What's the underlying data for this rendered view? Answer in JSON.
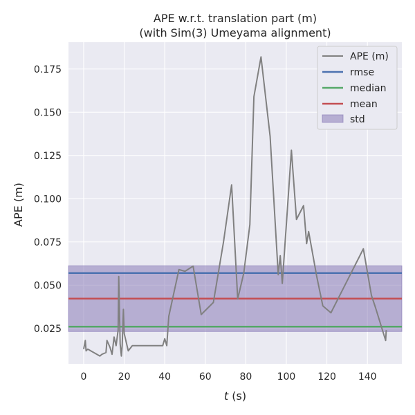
{
  "chart_data": {
    "type": "line",
    "title": "APE w.r.t. translation part (m)",
    "subtitle": "(with Sim(3) Umeyama alignment)",
    "xlabel_italic": "t",
    "xlabel_unit": " (s)",
    "ylabel": "APE (m)",
    "xlim": [
      -7.5,
      157
    ],
    "ylim": [
      0.0045,
      0.1905
    ],
    "xticks": [
      0,
      20,
      40,
      60,
      80,
      100,
      120,
      140
    ],
    "yticks": [
      0.025,
      0.05,
      0.075,
      0.1,
      0.125,
      0.15,
      0.175
    ],
    "ytick_labels": [
      "0.025",
      "0.050",
      "0.075",
      "0.100",
      "0.125",
      "0.150",
      "0.175"
    ],
    "grid": true,
    "legend_position": "top-right",
    "colors": {
      "plot_bg": "#eaeaf2",
      "grid": "#ffffff",
      "ape": "#808080",
      "rmse": "#4c72b0",
      "median": "#55a868",
      "mean": "#c44e52",
      "std": "#8172b2"
    },
    "series": [
      {
        "name": "APE (m)",
        "x": [
          0,
          0.8,
          1.2,
          2,
          5,
          8,
          9,
          11,
          11.5,
          13,
          14,
          15,
          16,
          17,
          17.3,
          18,
          18.6,
          19,
          19.6,
          20,
          22,
          24,
          39,
          40,
          41,
          42,
          47,
          50,
          54,
          58,
          64,
          69,
          73,
          76,
          79,
          82,
          84,
          87.5,
          92,
          96,
          97,
          98,
          100,
          102.5,
          105,
          108.5,
          110,
          111,
          115,
          118,
          122,
          138,
          142,
          144,
          149,
          149.3
        ],
        "y": [
          0.013,
          0.018,
          0.012,
          0.013,
          0.011,
          0.009,
          0.01,
          0.011,
          0.018,
          0.014,
          0.01,
          0.02,
          0.015,
          0.024,
          0.055,
          0.016,
          0.009,
          0.015,
          0.036,
          0.022,
          0.012,
          0.015,
          0.015,
          0.019,
          0.015,
          0.032,
          0.059,
          0.058,
          0.061,
          0.033,
          0.04,
          0.075,
          0.108,
          0.042,
          0.057,
          0.085,
          0.159,
          0.182,
          0.136,
          0.056,
          0.067,
          0.051,
          0.085,
          0.128,
          0.088,
          0.096,
          0.074,
          0.081,
          0.055,
          0.038,
          0.034,
          0.071,
          0.044,
          0.037,
          0.018,
          0.024
        ]
      },
      {
        "name": "rmse",
        "value": 0.057
      },
      {
        "name": "median",
        "value": 0.026
      },
      {
        "name": "mean",
        "value": 0.0422
      },
      {
        "name": "std",
        "range": [
          0.0232,
          0.0612
        ]
      }
    ]
  }
}
